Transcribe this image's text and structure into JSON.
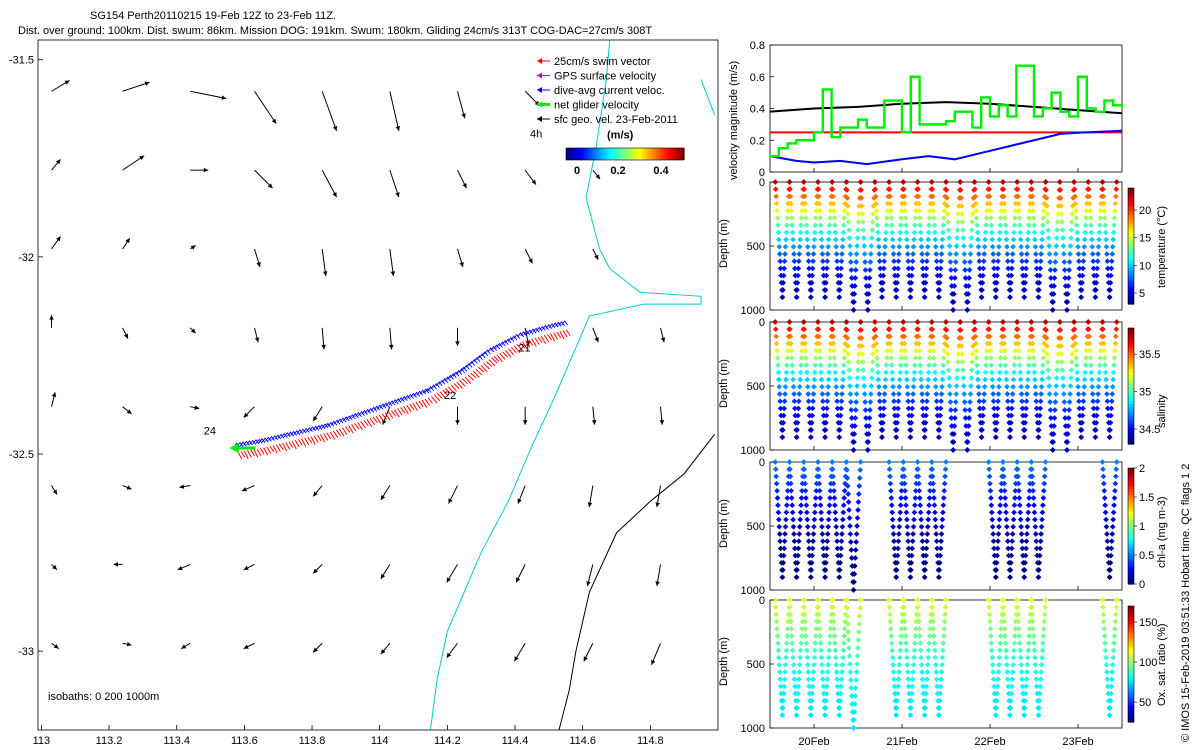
{
  "title": {
    "line1": "SG154 Perth20110215 19-Feb 12Z to 23-Feb 11Z.",
    "line2": "Dist. over ground: 100km. Dist. swum: 86km. Mission DOG: 191km. Swum: 180km. Gliding 24cm/s 313T COG-DAC=27cm/s 308T"
  },
  "credit": "© IMOS 15-Feb-2019 03:51:33 Hobart time. QC flags 1  2",
  "colors": {
    "swim": "#ff0000",
    "gps": "#cc00cc",
    "dac": "#0000ff",
    "net": "#00ee00",
    "sfc": "#000000",
    "coast": "#00cccc",
    "iso": "#000000"
  },
  "chart_data": [
    {
      "type": "map",
      "name": "track-map",
      "xlim": [
        112.99,
        115.0
      ],
      "ylim": [
        -33.2,
        -31.45
      ],
      "xticks": [
        113,
        113.2,
        113.4,
        113.6,
        113.8,
        114,
        114.2,
        114.4,
        114.6,
        114.8
      ],
      "xtick_labels": [
        "113",
        "113.2",
        "113.4",
        "113.6",
        "113.8",
        "114",
        "114.2",
        "114.4",
        "114.6",
        "114.8"
      ],
      "yticks": [
        -31.5,
        -32,
        -32.5,
        -33
      ],
      "ytick_labels": [
        "-31.5",
        "-32",
        "-32.5",
        "-33"
      ],
      "legend": {
        "entries": [
          {
            "label": "25cm/s swim vector",
            "color": "#ff0000"
          },
          {
            "label": "GPS surface velocity",
            "color": "#cc00cc"
          },
          {
            "label": "dive-avg current veloc.",
            "color": "#0000ff"
          },
          {
            "label": "net glider velocity",
            "color": "#00ee00"
          },
          {
            "label": "sfc geo. vel. 23-Feb-2011",
            "color": "#000000"
          }
        ],
        "scale_label": "4h",
        "colorbar_title": "(m/s)",
        "colorbar_ticks": [
          "0",
          "0.2",
          "0.4"
        ]
      },
      "isobath_label": "isobaths: 0   200  1000m",
      "day_labels": [
        {
          "text": "21",
          "lon": 114.41,
          "lat": -32.24
        },
        {
          "text": "22",
          "lon": 114.19,
          "lat": -32.36
        },
        {
          "text": "24",
          "lon": 113.48,
          "lat": -32.45
        }
      ],
      "current_field": {
        "lons": [
          113.03,
          113.24,
          113.44,
          113.63,
          113.83,
          114.03,
          114.23,
          114.43,
          114.63,
          114.83
        ],
        "lats": [
          -31.58,
          -31.78,
          -31.98,
          -32.18,
          -32.38,
          -32.58,
          -32.78,
          -32.98
        ],
        "u": [
          [
            0.1,
            0.15,
            0.2,
            0.12,
            0.08,
            0.05,
            0.04,
            0.08,
            0.0,
            0.0
          ],
          [
            0.05,
            0.12,
            0.1,
            0.1,
            0.08,
            0.05,
            0.05,
            0.06,
            0.04,
            0.0
          ],
          [
            0.05,
            0.04,
            0.03,
            0.03,
            0.02,
            0.02,
            0.03,
            0.04,
            0.03,
            0.0
          ],
          [
            0.0,
            0.03,
            0.03,
            0.02,
            0.01,
            0.01,
            0.0,
            0.02,
            0.03,
            0.02
          ],
          [
            0.02,
            0.05,
            0.05,
            -0.06,
            -0.05,
            -0.04,
            0.0,
            0.0,
            0.01,
            0.01
          ],
          [
            0.03,
            0.05,
            -0.06,
            -0.07,
            -0.05,
            -0.05,
            -0.05,
            -0.04,
            -0.02,
            -0.02
          ],
          [
            0.03,
            -0.05,
            -0.07,
            -0.06,
            -0.05,
            -0.05,
            -0.06,
            -0.05,
            -0.03,
            -0.02
          ],
          [
            0.04,
            0.05,
            -0.05,
            -0.06,
            -0.05,
            -0.05,
            -0.06,
            -0.06,
            -0.05,
            -0.05
          ]
        ],
        "v": [
          [
            0.06,
            0.05,
            -0.04,
            -0.18,
            -0.22,
            -0.22,
            -0.15,
            -0.08,
            0.0,
            0.0
          ],
          [
            0.06,
            0.08,
            0.0,
            -0.1,
            -0.15,
            -0.15,
            -0.1,
            -0.08,
            -0.05,
            0.0
          ],
          [
            0.07,
            0.06,
            0.02,
            -0.1,
            -0.15,
            -0.15,
            -0.1,
            -0.08,
            -0.06,
            0.0
          ],
          [
            0.07,
            -0.06,
            -0.03,
            -0.08,
            -0.12,
            -0.12,
            -0.1,
            -0.1,
            -0.08,
            -0.08
          ],
          [
            0.08,
            -0.04,
            -0.01,
            -0.06,
            -0.08,
            -0.1,
            -0.1,
            -0.1,
            -0.1,
            -0.1
          ],
          [
            -0.05,
            -0.02,
            -0.01,
            -0.03,
            -0.06,
            -0.08,
            -0.1,
            -0.1,
            -0.12,
            -0.12
          ],
          [
            -0.03,
            0.0,
            -0.03,
            -0.03,
            -0.05,
            -0.08,
            -0.1,
            -0.1,
            -0.12,
            -0.12
          ],
          [
            -0.03,
            -0.01,
            -0.03,
            -0.03,
            -0.05,
            -0.06,
            -0.08,
            -0.1,
            -0.1,
            -0.12
          ]
        ]
      },
      "track": {
        "lon": [
          114.55,
          114.5,
          114.42,
          114.33,
          114.25,
          114.15,
          114.05,
          113.95,
          113.85,
          113.75,
          113.65,
          113.58
        ],
        "lat": [
          -32.18,
          -32.19,
          -32.21,
          -32.25,
          -32.3,
          -32.35,
          -32.38,
          -32.41,
          -32.44,
          -32.46,
          -32.48,
          -32.49
        ]
      }
    },
    {
      "type": "line",
      "name": "velocity-magnitude",
      "ylabel": "velocity magnitude (m/s)",
      "ylim": [
        0,
        0.8
      ],
      "yticks": [
        0,
        0.2,
        0.4,
        0.6,
        0.8
      ],
      "ytick_labels": [
        "0",
        "0.2",
        "0.4",
        "0.6",
        "0.8"
      ],
      "x_days": [
        19.5,
        23.5
      ],
      "series": [
        {
          "name": "sfc geo",
          "color": "#000000",
          "x": [
            19.5,
            20.0,
            20.5,
            21.0,
            21.5,
            22.0,
            22.5,
            23.0,
            23.5
          ],
          "y": [
            0.38,
            0.4,
            0.41,
            0.43,
            0.44,
            0.43,
            0.41,
            0.39,
            0.37
          ]
        },
        {
          "name": "swim",
          "color": "#ff0000",
          "x": [
            19.5,
            23.5
          ],
          "y": [
            0.25,
            0.25
          ]
        },
        {
          "name": "dac",
          "color": "#0000ff",
          "x": [
            19.5,
            19.8,
            20.0,
            20.3,
            20.6,
            21.0,
            21.3,
            21.6,
            21.9,
            22.2,
            22.5,
            22.8,
            23.1,
            23.5
          ],
          "y": [
            0.1,
            0.07,
            0.06,
            0.07,
            0.05,
            0.08,
            0.1,
            0.08,
            0.12,
            0.16,
            0.2,
            0.24,
            0.25,
            0.26
          ]
        },
        {
          "name": "net glider",
          "color": "#00ee00",
          "x": [
            19.5,
            19.6,
            19.7,
            19.8,
            20.0,
            20.1,
            20.2,
            20.3,
            20.5,
            20.6,
            20.8,
            21.0,
            21.1,
            21.2,
            21.3,
            21.5,
            21.6,
            21.8,
            21.9,
            22.0,
            22.1,
            22.2,
            22.3,
            22.5,
            22.6,
            22.7,
            22.8,
            22.9,
            23.0,
            23.1,
            23.2,
            23.3,
            23.4,
            23.5
          ],
          "y": [
            0.1,
            0.15,
            0.18,
            0.2,
            0.25,
            0.52,
            0.22,
            0.28,
            0.33,
            0.28,
            0.45,
            0.25,
            0.6,
            0.3,
            0.3,
            0.32,
            0.38,
            0.28,
            0.47,
            0.35,
            0.42,
            0.35,
            0.67,
            0.35,
            0.4,
            0.5,
            0.38,
            0.35,
            0.6,
            0.4,
            0.38,
            0.45,
            0.42,
            0.43
          ]
        }
      ]
    },
    {
      "type": "scatter",
      "name": "temperature-section",
      "ylabel": "Depth (m)",
      "ylim": [
        0,
        1000
      ],
      "yticks": [
        0,
        500,
        1000
      ],
      "ytick_labels": [
        "0",
        "500",
        "1000"
      ],
      "colorbar_label": "temperature (°C)",
      "colorbar_ticks": [
        "5",
        "10",
        "15",
        "20"
      ],
      "colorbar_values": [
        5,
        10,
        15,
        20
      ],
      "colorbar_range": [
        3,
        24
      ],
      "colormap": "jet",
      "x_days": [
        19.5,
        23.5
      ],
      "profile_count": 24,
      "gaps": []
    },
    {
      "type": "scatter",
      "name": "salinity-section",
      "ylabel": "Depth (m)",
      "ylim": [
        0,
        1000
      ],
      "yticks": [
        0,
        500,
        1000
      ],
      "ytick_labels": [
        "0",
        "500",
        "1000"
      ],
      "colorbar_label": "salinity",
      "colorbar_ticks": [
        "34.5",
        "35",
        "35.5"
      ],
      "colorbar_values": [
        34.5,
        35,
        35.5
      ],
      "colorbar_range": [
        34.3,
        35.85
      ],
      "colormap": "jet",
      "x_days": [
        19.5,
        23.5
      ],
      "profile_count": 24,
      "gaps": []
    },
    {
      "type": "scatter",
      "name": "chlorophyll-section",
      "ylabel": "Depth (m)",
      "ylim": [
        0,
        1000
      ],
      "yticks": [
        0,
        500,
        1000
      ],
      "ytick_labels": [
        "0",
        "500",
        "1000"
      ],
      "colorbar_label": "chl-a (mg m-3)",
      "colorbar_ticks": [
        "0",
        "0.5",
        "1",
        "1.5",
        "2"
      ],
      "colorbar_values": [
        0,
        0.5,
        1,
        1.5,
        2
      ],
      "colorbar_range": [
        0,
        2
      ],
      "colormap": "jet",
      "x_days": [
        19.5,
        23.5
      ],
      "profile_count": 24,
      "gaps": [
        [
          20.55,
          20.9
        ],
        [
          21.55,
          21.95
        ],
        [
          22.65,
          23.3
        ]
      ]
    },
    {
      "type": "scatter",
      "name": "oxygen-section",
      "ylabel": "Depth (m)",
      "ylim": [
        0,
        1000
      ],
      "yticks": [
        0,
        500,
        1000
      ],
      "ytick_labels": [
        "0",
        "500",
        "1000"
      ],
      "colorbar_label": "Ox. sat. ratio (%)",
      "colorbar_ticks": [
        "50",
        "100",
        "150"
      ],
      "colorbar_values": [
        50,
        100,
        150
      ],
      "colorbar_range": [
        25,
        170
      ],
      "colormap": "jet",
      "x_days": [
        19.5,
        23.5
      ],
      "xticks": [
        20,
        21,
        22,
        23
      ],
      "xtick_labels": [
        "20Feb",
        "21Feb",
        "22Feb",
        "23Feb"
      ],
      "profile_count": 24,
      "gaps": [
        [
          20.55,
          20.9
        ],
        [
          21.55,
          21.95
        ],
        [
          22.65,
          23.3
        ]
      ]
    }
  ]
}
